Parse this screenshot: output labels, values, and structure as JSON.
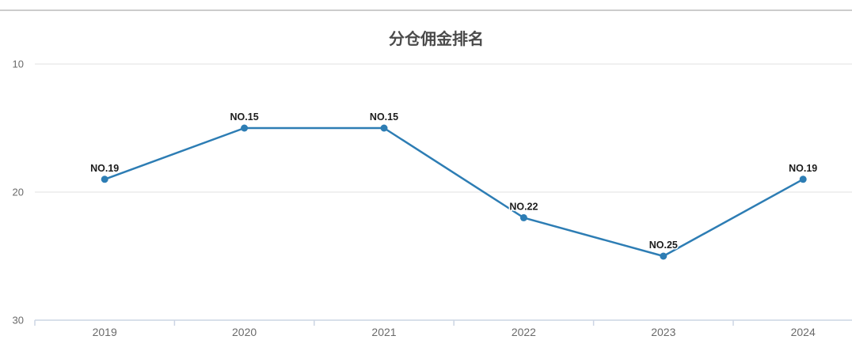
{
  "chart_data": {
    "type": "line",
    "title": "分仓佣金排名",
    "categories": [
      "2019",
      "2020",
      "2021",
      "2022",
      "2023",
      "2024"
    ],
    "values": [
      19,
      15,
      15,
      22,
      25,
      19
    ],
    "point_labels": [
      "NO.19",
      "NO.15",
      "NO.15",
      "NO.22",
      "NO.25",
      "NO.19"
    ],
    "xlabel": "",
    "ylabel": "",
    "y_axis": {
      "ticks": [
        10,
        20,
        30
      ],
      "min": 10,
      "max": 30,
      "inverted": true
    },
    "legend_position": "none",
    "grid": "horizontal",
    "colors": {
      "line": "#2d7db4",
      "point": "#2d7db4",
      "grid_line": "#ececec",
      "axis_line": "#ccd5e4",
      "tick_label": "#6a6a6a",
      "point_label": "#1c1c1c",
      "title": "#4a4a4a",
      "divider": "#cccccc",
      "background": "#ffffff"
    }
  }
}
